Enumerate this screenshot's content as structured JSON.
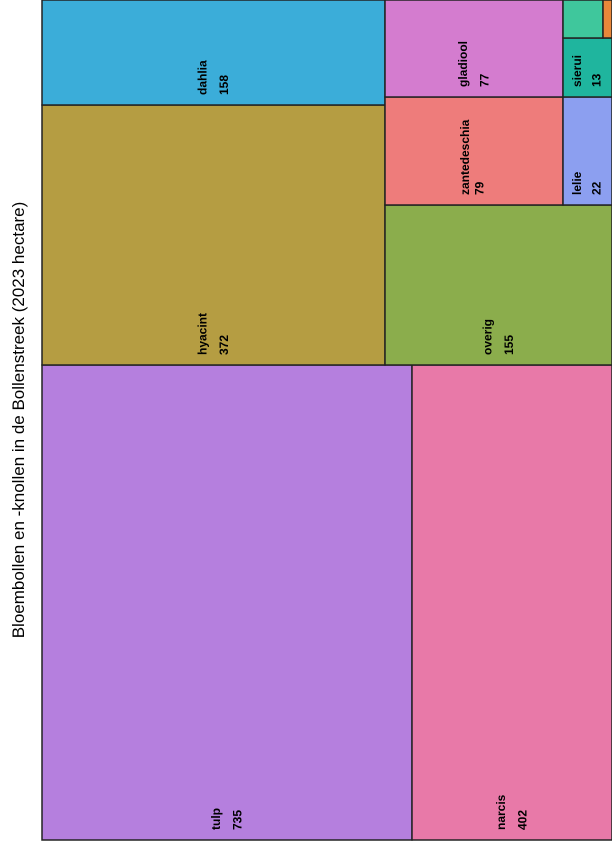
{
  "chart_data": {
    "type": "treemap",
    "title": "Bloembollen en -knollen in de Bollenstreek (2023 hectare)",
    "categories": [
      "tulp",
      "narcis",
      "hyacint",
      "dahlia",
      "overig",
      "zantedeschia",
      "gladiool",
      "lelie",
      "sierui",
      null,
      null
    ],
    "values": [
      735,
      402,
      372,
      158,
      155,
      79,
      77,
      22,
      13,
      8,
      2
    ],
    "colors": [
      "#b57fde",
      "#e879a8",
      "#b59d42",
      "#3badd9",
      "#8bad4c",
      "#ee7c7b",
      "#d47ccf",
      "#8c9ff0",
      "#1fb59e",
      "#3fc79c",
      "#e8873a"
    ]
  }
}
